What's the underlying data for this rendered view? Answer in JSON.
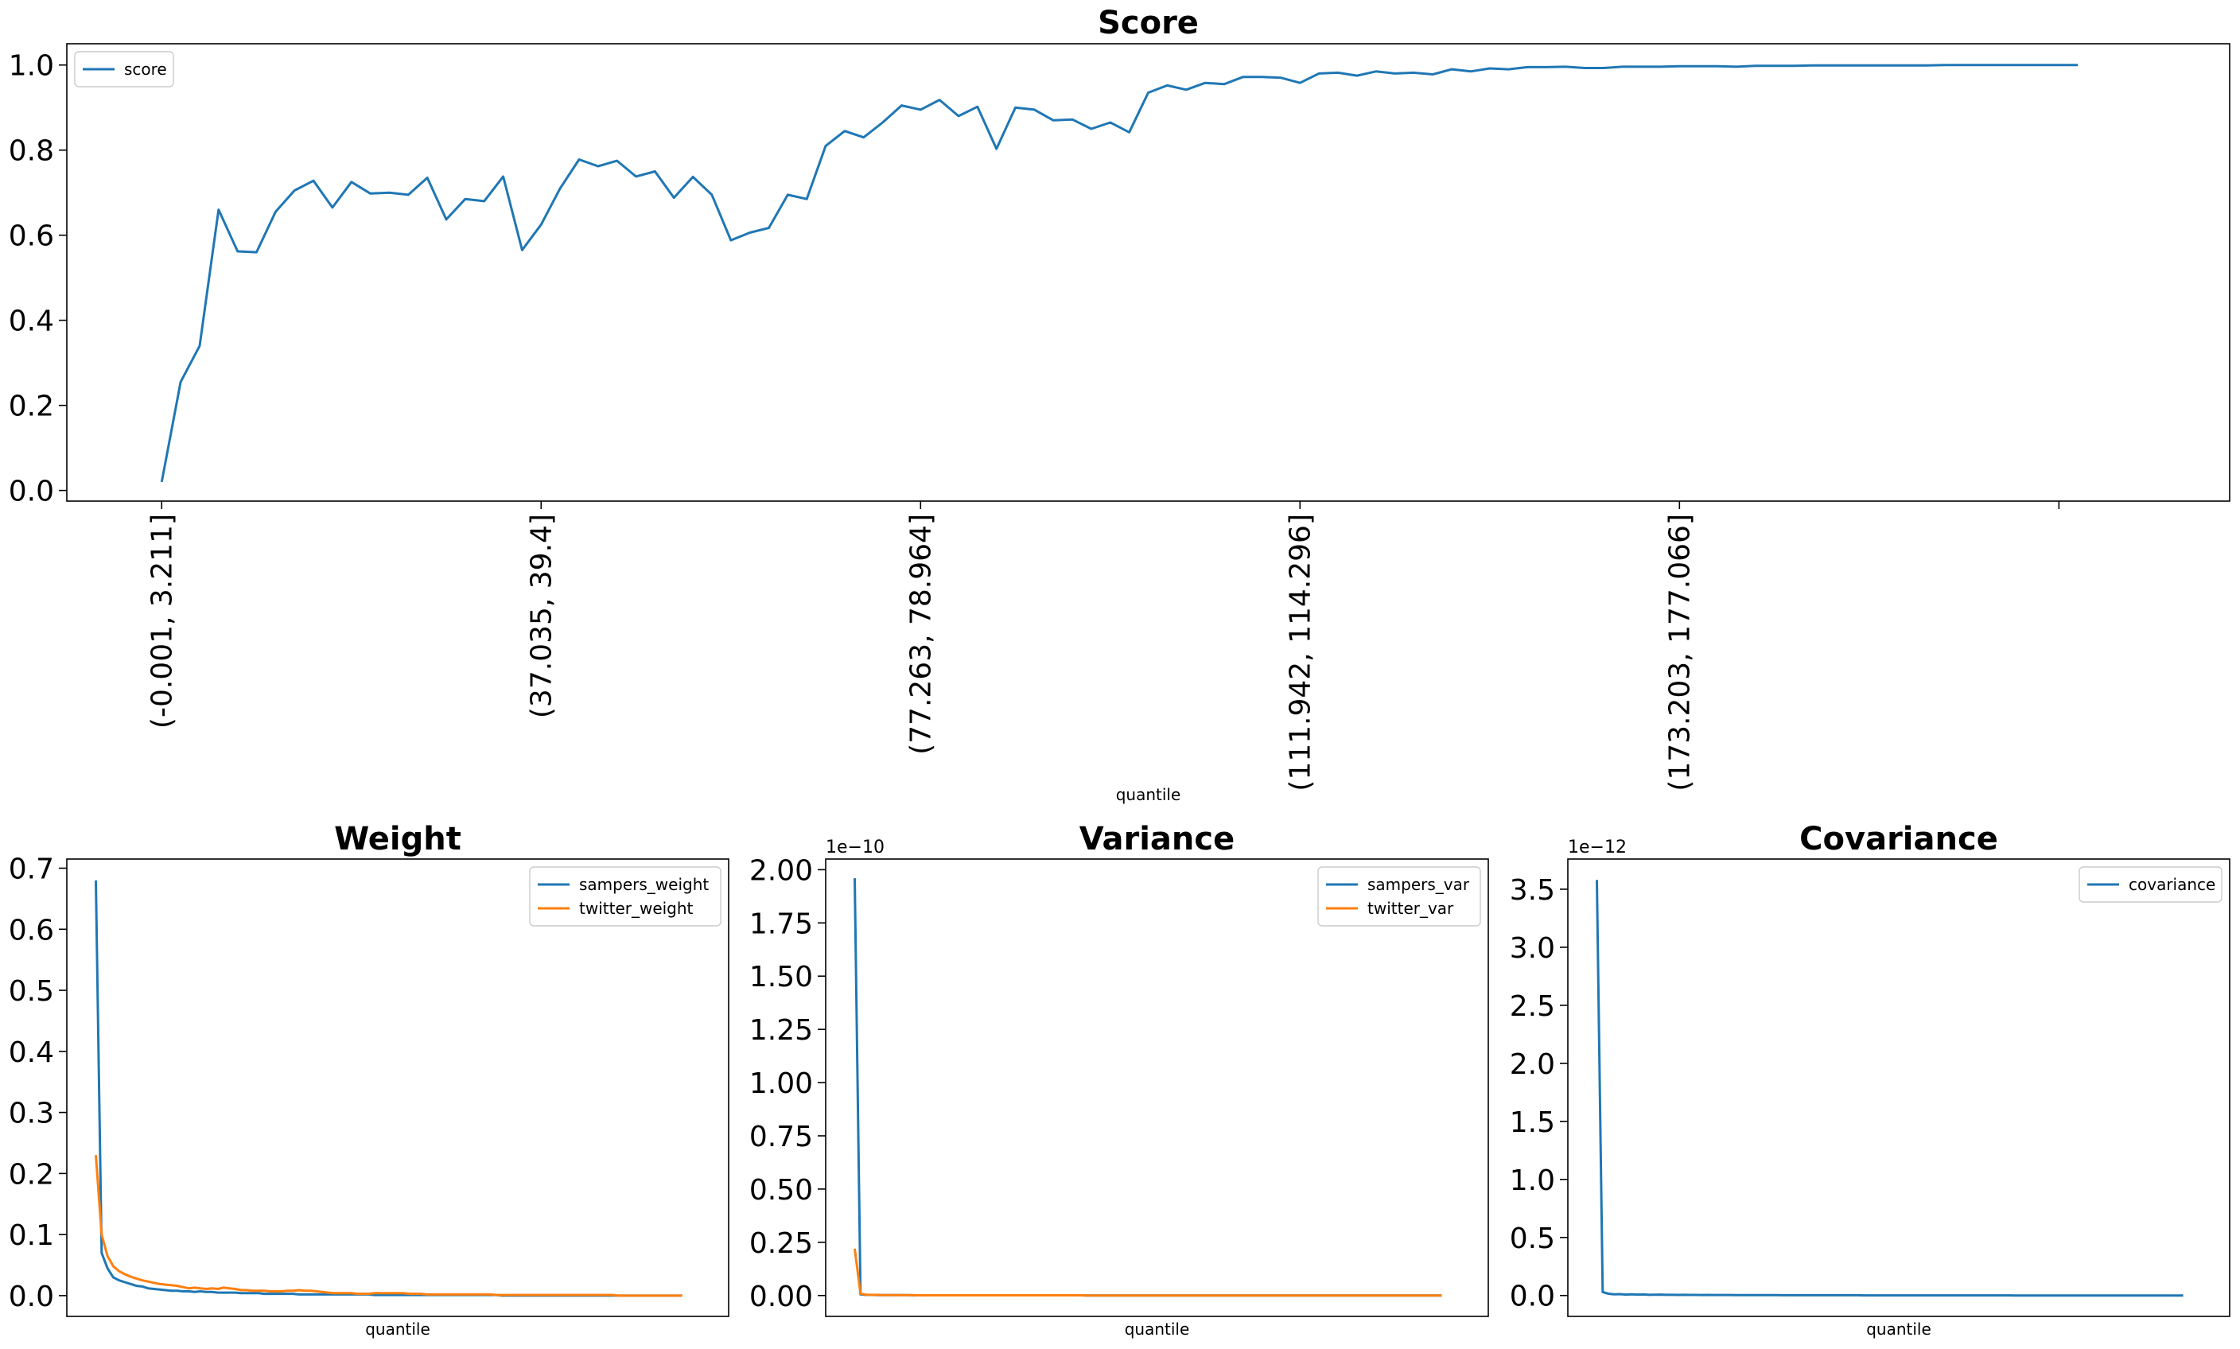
{
  "chart_data": [
    {
      "id": "score",
      "type": "line",
      "title": "Score",
      "xlabel": "quantile",
      "ylabel": "",
      "xlim": [
        -5,
        109
      ],
      "ylim": [
        -0.025,
        1.05
      ],
      "yticks": [
        0.0,
        0.2,
        0.4,
        0.6,
        0.8,
        1.0
      ],
      "ytick_labels": [
        "0.0",
        "0.2",
        "0.4",
        "0.6",
        "0.8",
        "1.0"
      ],
      "xticks": [
        0,
        20,
        40,
        60,
        80,
        100
      ],
      "xtick_labels": [
        "(-0.001, 3.211]",
        "(37.035, 39.4]",
        "(77.263, 78.964]",
        "(111.942, 114.296]",
        "(173.203, 177.066]",
        ""
      ],
      "legend": "upper left",
      "series": [
        {
          "name": "score",
          "color": "#1f77b4",
          "values": [
            0.02,
            0.255,
            0.34,
            0.66,
            0.562,
            0.56,
            0.655,
            0.705,
            0.728,
            0.665,
            0.725,
            0.698,
            0.7,
            0.695,
            0.735,
            0.637,
            0.685,
            0.68,
            0.738,
            0.565,
            0.625,
            0.71,
            0.778,
            0.762,
            0.775,
            0.738,
            0.75,
            0.688,
            0.737,
            0.695,
            0.588,
            0.606,
            0.617,
            0.695,
            0.685,
            0.81,
            0.845,
            0.83,
            0.865,
            0.905,
            0.895,
            0.918,
            0.88,
            0.902,
            0.803,
            0.9,
            0.895,
            0.87,
            0.872,
            0.85,
            0.865,
            0.842,
            0.935,
            0.952,
            0.942,
            0.958,
            0.955,
            0.972,
            0.972,
            0.97,
            0.958,
            0.98,
            0.982,
            0.975,
            0.985,
            0.98,
            0.982,
            0.978,
            0.99,
            0.985,
            0.992,
            0.99,
            0.995,
            0.995,
            0.996,
            0.993,
            0.993,
            0.996,
            0.996,
            0.996,
            0.997,
            0.997,
            0.997,
            0.996,
            0.998,
            0.998,
            0.998,
            0.999,
            0.999,
            0.999,
            0.999,
            0.999,
            0.999,
            0.999,
            1.0,
            1.0,
            1.0,
            1.0,
            1.0,
            1.0,
            1.0,
            1.0
          ]
        }
      ]
    },
    {
      "id": "weight",
      "type": "line",
      "title": "Weight",
      "xlabel": "quantile",
      "ylabel": "",
      "xlim": [
        -5,
        109
      ],
      "ylim": [
        -0.034,
        0.715
      ],
      "yticks": [
        0.0,
        0.1,
        0.2,
        0.3,
        0.4,
        0.5,
        0.6,
        0.7
      ],
      "ytick_labels": [
        "0.0",
        "0.1",
        "0.2",
        "0.3",
        "0.4",
        "0.5",
        "0.6",
        "0.7"
      ],
      "legend": "upper right",
      "series": [
        {
          "name": "sampers_weight",
          "color": "#1f77b4",
          "values": [
            0.68,
            0.07,
            0.045,
            0.03,
            0.025,
            0.022,
            0.019,
            0.016,
            0.015,
            0.012,
            0.011,
            0.01,
            0.009,
            0.008,
            0.008,
            0.007,
            0.007,
            0.006,
            0.007,
            0.006,
            0.006,
            0.005,
            0.005,
            0.005,
            0.005,
            0.004,
            0.004,
            0.004,
            0.004,
            0.003,
            0.003,
            0.003,
            0.003,
            0.003,
            0.003,
            0.002,
            0.002,
            0.002,
            0.002,
            0.002,
            0.002,
            0.002,
            0.002,
            0.002,
            0.002,
            0.002,
            0.002,
            0.002,
            0.001,
            0.001,
            0.001,
            0.001,
            0.001,
            0.001,
            0.001,
            0.001,
            0.001,
            0.001,
            0.001,
            0.001,
            0.001,
            0.001,
            0.001,
            0.001,
            0.001,
            0.001,
            0.001,
            0.001,
            0.001,
            0.001,
            0.0,
            0.0,
            0.0,
            0.0,
            0.0,
            0.0,
            0.0,
            0.0,
            0.0,
            0.0,
            0.0,
            0.0,
            0.0,
            0.0,
            0.0,
            0.0,
            0.0,
            0.0,
            0.0,
            0.0,
            0.0,
            0.0,
            0.0,
            0.0,
            0.0,
            0.0,
            0.0,
            0.0,
            0.0,
            0.0,
            0.0,
            0.0
          ]
        },
        {
          "name": "twitter_weight",
          "color": "#ff7f0e",
          "values": [
            0.23,
            0.1,
            0.065,
            0.048,
            0.04,
            0.035,
            0.031,
            0.028,
            0.025,
            0.023,
            0.021,
            0.019,
            0.018,
            0.017,
            0.016,
            0.014,
            0.012,
            0.013,
            0.012,
            0.011,
            0.012,
            0.011,
            0.013,
            0.012,
            0.011,
            0.009,
            0.009,
            0.008,
            0.008,
            0.008,
            0.007,
            0.007,
            0.007,
            0.008,
            0.008,
            0.009,
            0.008,
            0.008,
            0.007,
            0.006,
            0.005,
            0.004,
            0.004,
            0.004,
            0.004,
            0.003,
            0.003,
            0.003,
            0.004,
            0.004,
            0.004,
            0.004,
            0.004,
            0.004,
            0.003,
            0.003,
            0.003,
            0.002,
            0.002,
            0.002,
            0.002,
            0.002,
            0.002,
            0.002,
            0.002,
            0.002,
            0.002,
            0.002,
            0.002,
            0.001,
            0.001,
            0.001,
            0.001,
            0.001,
            0.001,
            0.001,
            0.001,
            0.001,
            0.001,
            0.001,
            0.001,
            0.001,
            0.001,
            0.001,
            0.001,
            0.001,
            0.001,
            0.001,
            0.001,
            0.001,
            0.0,
            0.0,
            0.0,
            0.0,
            0.0,
            0.0,
            0.0,
            0.0,
            0.0,
            0.0,
            0.0,
            0.0
          ]
        }
      ]
    },
    {
      "id": "variance",
      "type": "line",
      "title": "Variance",
      "xlabel": "quantile",
      "ylabel": "",
      "xlim": [
        -5,
        109
      ],
      "ylim": [
        -0.098,
        2.05
      ],
      "yticks": [
        0.0,
        0.25,
        0.5,
        0.75,
        1.0,
        1.25,
        1.5,
        1.75,
        2.0
      ],
      "ytick_labels": [
        "0.00",
        "0.25",
        "0.50",
        "0.75",
        "1.00",
        "1.25",
        "1.50",
        "1.75",
        "2.00"
      ],
      "offset_text": "1e−10",
      "legend": "upper right",
      "series": [
        {
          "name": "sampers_var",
          "color": "#1f77b4",
          "values": [
            1.96,
            0.005,
            0.003,
            0.003,
            0.002,
            0.002,
            0.002,
            0.002,
            0.002,
            0.002,
            0.001,
            0.001,
            0.001,
            0.001,
            0.001,
            0.001,
            0.001,
            0.001,
            0.001,
            0.001,
            0.001,
            0.001,
            0.001,
            0.001,
            0.001,
            0.001,
            0.001,
            0.001,
            0.001,
            0.001,
            0.001,
            0.001,
            0.001,
            0.001,
            0.001,
            0.001,
            0.001,
            0.001,
            0.001,
            0.001,
            0.0,
            0.0,
            0.0,
            0.0,
            0.0,
            0.0,
            0.0,
            0.0,
            0.0,
            0.0,
            0.0,
            0.0,
            0.0,
            0.0,
            0.0,
            0.0,
            0.0,
            0.0,
            0.0,
            0.0,
            0.0,
            0.0,
            0.0,
            0.0,
            0.0,
            0.0,
            0.0,
            0.0,
            0.0,
            0.0,
            0.0,
            0.0,
            0.0,
            0.0,
            0.0,
            0.0,
            0.0,
            0.0,
            0.0,
            0.0,
            0.0,
            0.0,
            0.0,
            0.0,
            0.0,
            0.0,
            0.0,
            0.0,
            0.0,
            0.0,
            0.0,
            0.0,
            0.0,
            0.0,
            0.0,
            0.0,
            0.0,
            0.0,
            0.0,
            0.0,
            0.0,
            0.0
          ]
        },
        {
          "name": "twitter_var",
          "color": "#ff7f0e",
          "values": [
            0.22,
            0.008,
            0.004,
            0.003,
            0.003,
            0.002,
            0.002,
            0.002,
            0.002,
            0.002,
            0.002,
            0.001,
            0.001,
            0.001,
            0.001,
            0.001,
            0.001,
            0.001,
            0.001,
            0.001,
            0.001,
            0.001,
            0.001,
            0.001,
            0.001,
            0.001,
            0.001,
            0.001,
            0.001,
            0.001,
            0.001,
            0.001,
            0.001,
            0.001,
            0.001,
            0.001,
            0.001,
            0.001,
            0.001,
            0.001,
            0.0,
            0.0,
            0.0,
            0.0,
            0.0,
            0.0,
            0.0,
            0.0,
            0.0,
            0.0,
            0.0,
            0.0,
            0.0,
            0.0,
            0.0,
            0.0,
            0.0,
            0.0,
            0.0,
            0.0,
            0.0,
            0.0,
            0.0,
            0.0,
            0.0,
            0.0,
            0.0,
            0.0,
            0.0,
            0.0,
            0.0,
            0.0,
            0.0,
            0.0,
            0.0,
            0.0,
            0.0,
            0.0,
            0.0,
            0.0,
            0.0,
            0.0,
            0.0,
            0.0,
            0.0,
            0.0,
            0.0,
            0.0,
            0.0,
            0.0,
            0.0,
            0.0,
            0.0,
            0.0,
            0.0,
            0.0,
            0.0,
            0.0,
            0.0,
            0.0,
            0.0,
            0.0
          ]
        }
      ]
    },
    {
      "id": "covariance",
      "type": "line",
      "title": "Covariance",
      "xlabel": "quantile",
      "ylabel": "",
      "xlim": [
        -5,
        109
      ],
      "ylim": [
        -0.18,
        3.76
      ],
      "yticks": [
        0.0,
        0.5,
        1.0,
        1.5,
        2.0,
        2.5,
        3.0,
        3.5
      ],
      "ytick_labels": [
        "0.0",
        "0.5",
        "1.0",
        "1.5",
        "2.0",
        "2.5",
        "3.0",
        "3.5"
      ],
      "offset_text": "1e−12",
      "legend": "upper right",
      "series": [
        {
          "name": "covariance",
          "color": "#1f77b4",
          "values": [
            3.58,
            0.03,
            0.015,
            0.01,
            0.012,
            0.008,
            0.01,
            0.008,
            0.009,
            0.006,
            0.007,
            0.008,
            0.006,
            0.006,
            0.005,
            0.006,
            0.005,
            0.005,
            0.004,
            0.005,
            0.004,
            0.004,
            0.004,
            0.004,
            0.003,
            0.003,
            0.003,
            0.003,
            0.003,
            0.003,
            0.003,
            0.003,
            0.002,
            0.002,
            0.002,
            0.002,
            0.002,
            0.002,
            0.002,
            0.002,
            0.002,
            0.002,
            0.002,
            0.002,
            0.002,
            0.002,
            0.001,
            0.001,
            0.001,
            0.001,
            0.001,
            0.001,
            0.001,
            0.001,
            0.001,
            0.001,
            0.001,
            0.001,
            0.001,
            0.001,
            0.001,
            0.001,
            0.001,
            0.001,
            0.001,
            0.001,
            0.001,
            0.001,
            0.001,
            0.001,
            0.001,
            0.001,
            0.0,
            0.0,
            0.0,
            0.0,
            0.0,
            0.0,
            0.0,
            0.0,
            0.0,
            0.0,
            0.0,
            0.0,
            0.0,
            0.0,
            0.0,
            0.0,
            0.0,
            0.0,
            0.0,
            0.0,
            0.0,
            0.0,
            0.0,
            0.0,
            0.0,
            0.0,
            0.0,
            0.0,
            0.0,
            0.0
          ]
        }
      ]
    }
  ]
}
